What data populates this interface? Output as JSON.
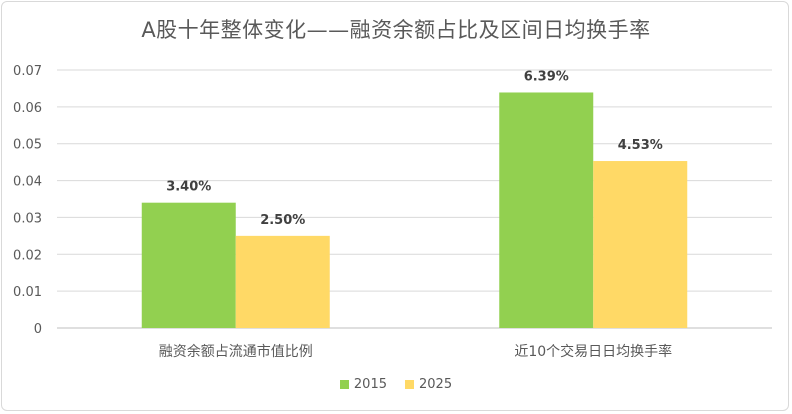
{
  "chart_data": {
    "type": "bar",
    "title": "A股十年整体变化——融资余额占比及区间日均换手率",
    "categories": [
      "融资余额占流通市值比例",
      "近10个交易日日均换手率"
    ],
    "series": [
      {
        "name": "2015",
        "values": [
          0.034,
          0.0639
        ],
        "labels": [
          "3.40%",
          "6.39%"
        ],
        "color": "#92d050"
      },
      {
        "name": "2025",
        "values": [
          0.025,
          0.0453
        ],
        "labels": [
          "2.50%",
          "4.53%"
        ],
        "color": "#ffd966"
      }
    ],
    "yticks": [
      "0",
      "0.01",
      "0.02",
      "0.03",
      "0.04",
      "0.05",
      "0.06",
      "0.07"
    ],
    "ylim": [
      0,
      0.07
    ],
    "grid": true,
    "legend_position": "bottom"
  }
}
